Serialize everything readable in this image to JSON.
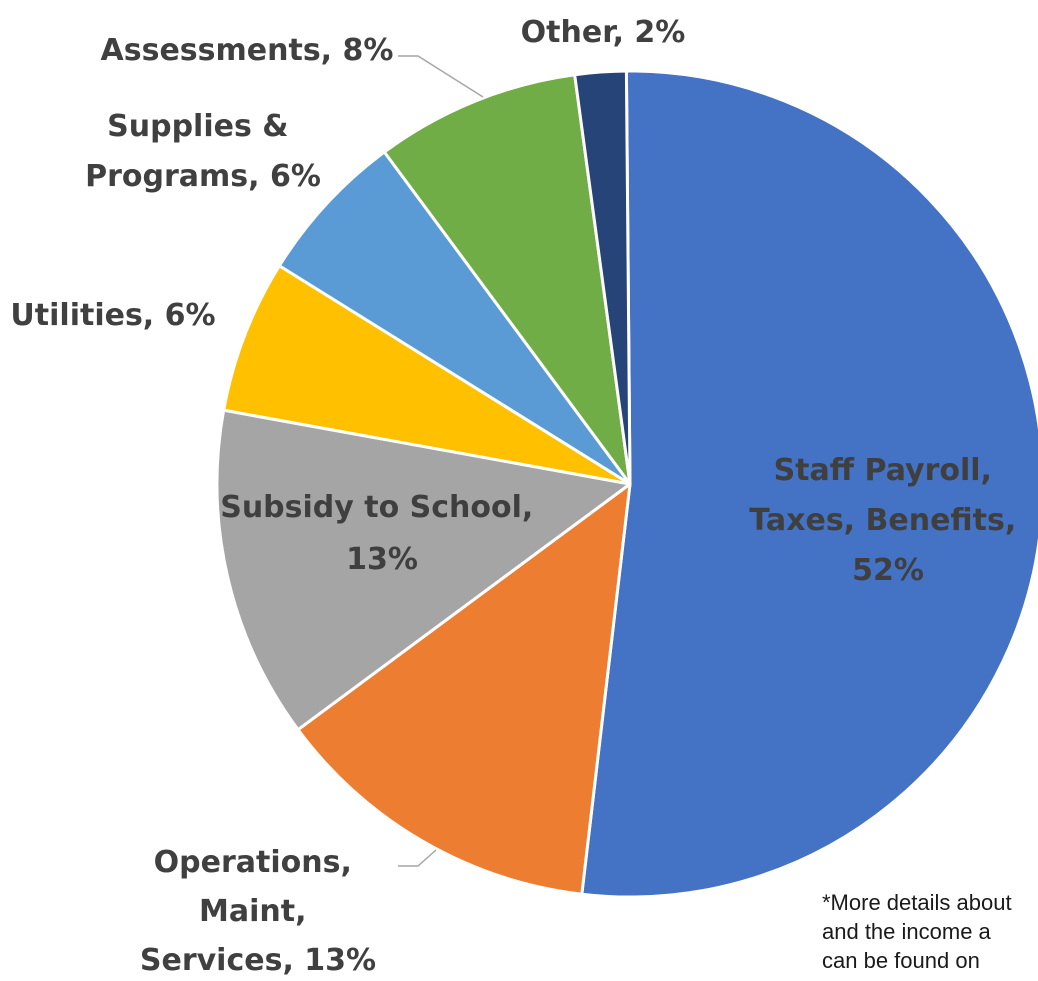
{
  "chart_data": {
    "type": "pie",
    "slices": [
      {
        "label": "Staff Payroll, Taxes, Benefits",
        "value": 52,
        "value_label": "52%",
        "color": "#4472c4"
      },
      {
        "label": "Operations, Maint, Services",
        "value": 13,
        "value_label": "13%",
        "color": "#ed7d31"
      },
      {
        "label": "Subsidy to School",
        "value": 13,
        "value_label": "13%",
        "color": "#a5a5a5"
      },
      {
        "label": "Utilities",
        "value": 6,
        "value_label": "6%",
        "color": "#ffc000"
      },
      {
        "label": "Supplies & Programs",
        "value": 6,
        "value_label": "6%",
        "color": "#5b9bd5"
      },
      {
        "label": "Assessments",
        "value": 8,
        "value_label": "8%",
        "color": "#70ad47"
      },
      {
        "label": "Other",
        "value": 2,
        "value_label": "2%",
        "color": "#264478"
      }
    ],
    "labels": {
      "staff": [
        "Staff Payroll,",
        "Taxes, Benefits,",
        "52%"
      ],
      "operations": [
        "Operations,",
        "Maint,",
        "Services, 13%"
      ],
      "subsidy": [
        "Subsidy to School,",
        "13%"
      ],
      "utilities": [
        "Utilities, 6%"
      ],
      "supplies": [
        "Supplies &",
        "Programs, 6%"
      ],
      "assessments": [
        "Assessments, 8%"
      ],
      "other": [
        "Other, 2%"
      ]
    }
  },
  "footnote": "*More details about\nand the income a\ncan be found on"
}
